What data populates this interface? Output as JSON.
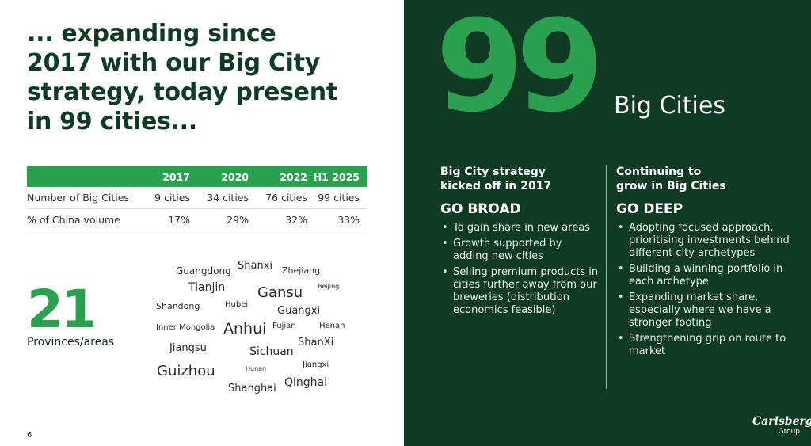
{
  "headline": {
    "lines": [
      "... expanding since",
      "2017 with our Big City",
      "strategy, today present",
      "in 99 cities..."
    ]
  },
  "table": {
    "headers": [
      "",
      "2017",
      "2020",
      "2022",
      "H1 2025"
    ],
    "rows": [
      [
        "Number of Big Cities",
        "9 cities",
        "34 cities",
        "76 cities",
        "99 cities"
      ],
      [
        "% of China volume",
        "17%",
        "29%",
        "32%",
        "33%"
      ]
    ]
  },
  "provinces": {
    "count": "21",
    "label": "Provinces/areas",
    "names": [
      "Guangdong",
      "Shanxi",
      "Zhejiang",
      "Tianjin",
      "Gansu",
      "Beijing",
      "Shandong",
      "Hubei",
      "Guangxi",
      "Inner Mongolia",
      "Anhui",
      "Fujian",
      "Henan",
      "Jiangsu",
      "Sichuan",
      "ShanXi",
      "Guizhou",
      "Hunan",
      "Jiangxi",
      "Shanghai",
      "Qinghai"
    ]
  },
  "page_number": "6",
  "hero": {
    "number": "99",
    "label": "Big Cities"
  },
  "columns": [
    {
      "heading_lines": [
        "Big City strategy",
        "kicked off in 2017"
      ],
      "title": "GO BROAD",
      "bullets": [
        "To gain share in new areas",
        "Growth supported by adding new cities",
        "Selling premium products in cities further away from our breweries (distribution economics feasible)"
      ]
    },
    {
      "heading_lines": [
        "Continuing to",
        "grow in Big Cities"
      ],
      "title": "GO DEEP",
      "bullets": [
        "Adopting focused approach, prioritising investments behind different city archetypes",
        "Building a winning portfolio in each archetype",
        "Expanding market share, especially where we have a stronger footing",
        "Strengthening grip on route to market"
      ]
    }
  ],
  "logo": {
    "brand": "Carlsberg",
    "sub": "Group"
  },
  "colors": {
    "accent_green": "#2aa14f",
    "dark_green": "#0f3a24",
    "headline_green": "#0e3b24"
  }
}
